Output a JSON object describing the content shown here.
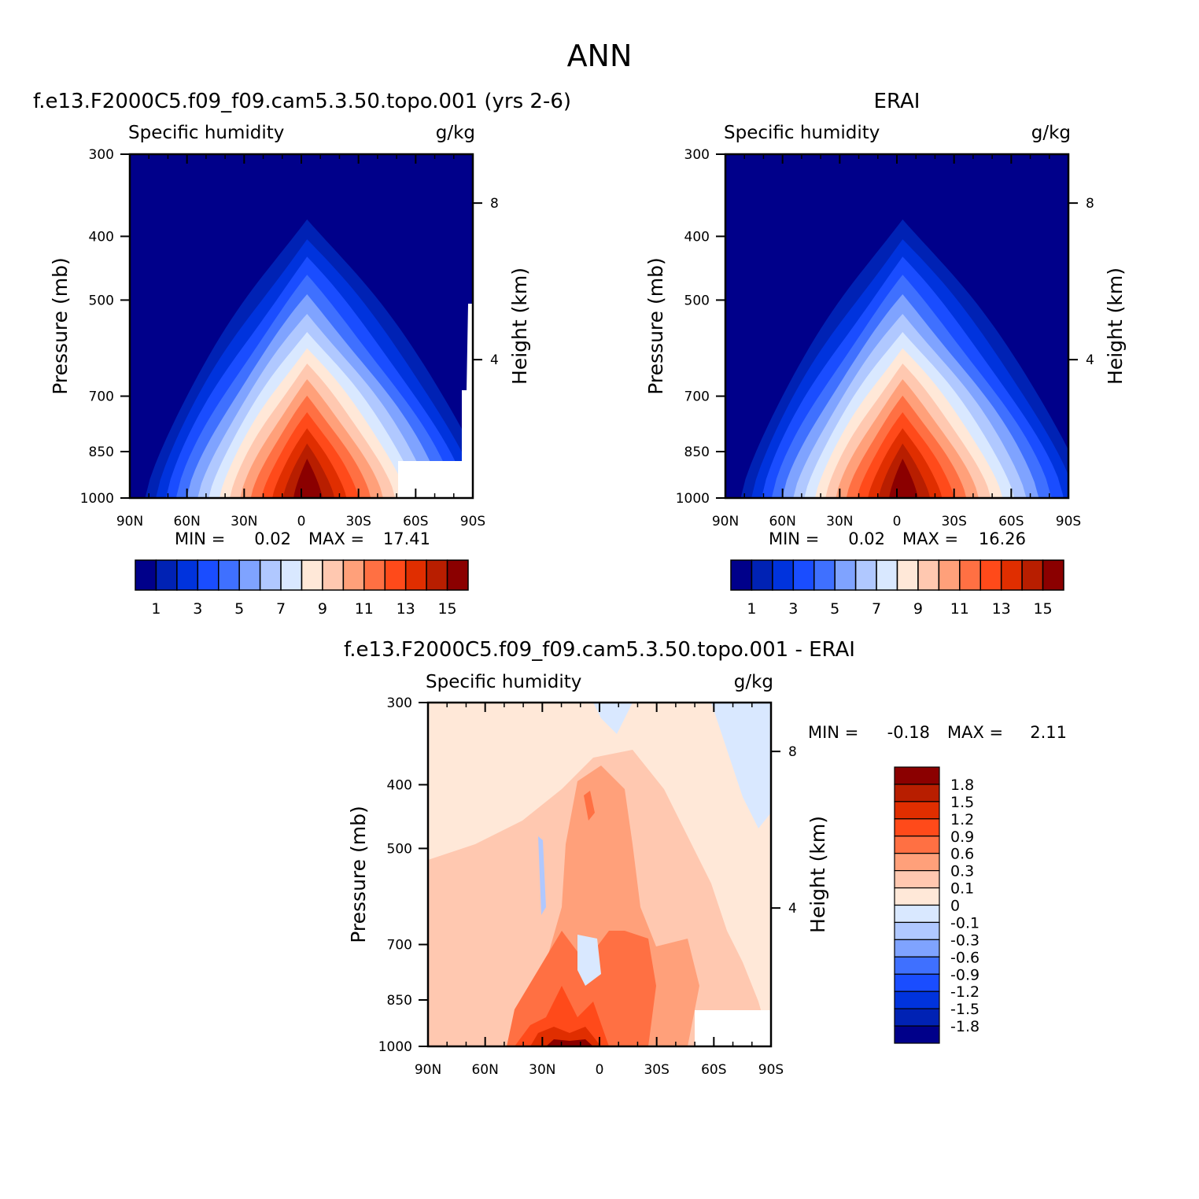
{
  "main_title": "ANN",
  "panels": [
    {
      "title": "f.e13.F2000C5.f09_f09.cam5.3.50.topo.001 (yrs 2-6)",
      "variable": "Specific humidity",
      "units": "g/kg",
      "min_label": "MIN =",
      "min_value": "0.02",
      "max_label": "MAX =",
      "max_value": "17.41"
    },
    {
      "title": "ERAI",
      "variable": "Specific humidity",
      "units": "g/kg",
      "min_label": "MIN =",
      "min_value": "0.02",
      "max_label": "MAX =",
      "max_value": "16.26"
    },
    {
      "title": "f.e13.F2000C5.f09_f09.cam5.3.50.topo.001 - ERAI",
      "variable": "Specific humidity",
      "units": "g/kg",
      "min_label": "MIN =",
      "min_value": "-0.18",
      "max_label": "MAX =",
      "max_value": "2.11"
    }
  ],
  "chart_data": [
    {
      "type": "heatmap",
      "title": "f.e13.F2000C5.f09_f09.cam5.3.50.topo.001 (yrs 2-6)",
      "ylabel": "Pressure (mb)",
      "y2label": "Height (km)",
      "x_ticks": [
        "90N",
        "60N",
        "30N",
        "0",
        "30S",
        "60S",
        "90S"
      ],
      "x_values": [
        90,
        60,
        30,
        0,
        -30,
        -60,
        -90
      ],
      "y_ticks": [
        "300",
        "400",
        "500",
        "700",
        "850",
        "1000"
      ],
      "y_values": [
        300,
        400,
        500,
        700,
        850,
        1000
      ],
      "y2_ticks": [
        "8",
        "4"
      ],
      "y2_values": [
        8,
        4
      ],
      "colorbar_labels": [
        "1",
        "3",
        "5",
        "7",
        "9",
        "11",
        "13",
        "15"
      ],
      "peak": {
        "lat": -3,
        "value": 17.41
      },
      "orientation": "horizontal"
    },
    {
      "type": "heatmap",
      "title": "ERAI",
      "ylabel": "Pressure (mb)",
      "y2label": "Height (km)",
      "x_ticks": [
        "90N",
        "60N",
        "30N",
        "0",
        "30S",
        "60S",
        "90S"
      ],
      "x_values": [
        90,
        60,
        30,
        0,
        -30,
        -60,
        -90
      ],
      "y_ticks": [
        "300",
        "400",
        "500",
        "700",
        "850",
        "1000"
      ],
      "y_values": [
        300,
        400,
        500,
        700,
        850,
        1000
      ],
      "y2_ticks": [
        "8",
        "4"
      ],
      "y2_values": [
        8,
        4
      ],
      "colorbar_labels": [
        "1",
        "3",
        "5",
        "7",
        "9",
        "11",
        "13",
        "15"
      ],
      "peak": {
        "lat": -3,
        "value": 16.26
      },
      "orientation": "horizontal"
    },
    {
      "type": "heatmap",
      "title": "f.e13.F2000C5.f09_f09.cam5.3.50.topo.001 - ERAI",
      "ylabel": "Pressure (mb)",
      "y2label": "Height (km)",
      "x_ticks": [
        "90N",
        "60N",
        "30N",
        "0",
        "30S",
        "60S",
        "90S"
      ],
      "x_values": [
        90,
        60,
        30,
        0,
        -30,
        -60,
        -90
      ],
      "y_ticks": [
        "300",
        "400",
        "500",
        "700",
        "850",
        "1000"
      ],
      "y_values": [
        300,
        400,
        500,
        700,
        850,
        1000
      ],
      "y2_ticks": [
        "8",
        "4"
      ],
      "y2_values": [
        8,
        4
      ],
      "colorbar_labels": [
        "1.8",
        "1.5",
        "1.2",
        "0.9",
        "0.6",
        "0.3",
        "0.1",
        "0",
        "-0.1",
        "-0.3",
        "-0.6",
        "-0.9",
        "-1.2",
        "-1.5",
        "-1.8"
      ],
      "orientation": "vertical"
    }
  ],
  "colors": {
    "humidity_levels": [
      "#00008a",
      "#0022b4",
      "#0033dd",
      "#1a4dff",
      "#3f70ff",
      "#7fa3ff",
      "#b0c8ff",
      "#d9e8ff",
      "#ffe8d8",
      "#ffc8b0",
      "#ffa07a",
      "#ff7043",
      "#ff4a1a",
      "#e02e00",
      "#b81e00",
      "#8b0000"
    ],
    "diff_levels": [
      "#8b0000",
      "#b81e00",
      "#e02e00",
      "#ff4a1a",
      "#ff7043",
      "#ffa07a",
      "#ffc8b0",
      "#ffe8d8",
      "#d9e8ff",
      "#b0c8ff",
      "#7fa3ff",
      "#3f70ff",
      "#1a4dff",
      "#0033dd",
      "#0022b4",
      "#00008a"
    ]
  }
}
